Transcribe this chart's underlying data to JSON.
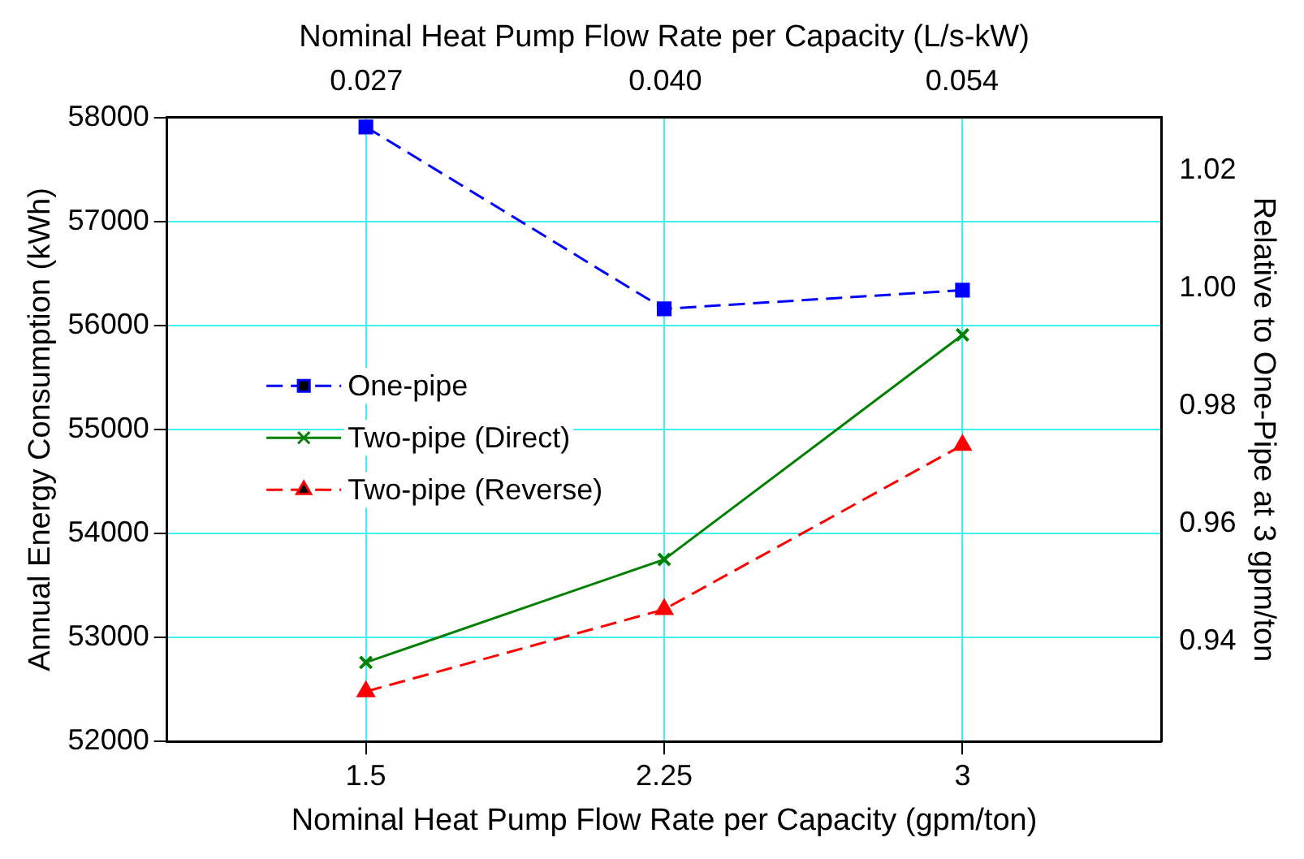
{
  "chart_data": {
    "type": "line",
    "xlabel": "Nominal Heat Pump Flow Rate per Capacity (gpm/ton)",
    "x2label": "Nominal Heat Pump Flow Rate per Capacity (L/s-kW)",
    "ylabel": "Annual Energy Consumption (kWh)",
    "y2label": "Relative to One-Pipe at 3 gpm/ton",
    "x": [
      1.5,
      2.25,
      3
    ],
    "series": [
      {
        "name": "One-pipe",
        "color": "#0000ff",
        "values": [
          57910,
          56160,
          56340
        ],
        "marker": "square",
        "line_style": "dashed"
      },
      {
        "name": "Two-pipe (Direct)",
        "color": "#008000",
        "values": [
          52760,
          53750,
          55910
        ],
        "marker": "cross",
        "line_style": "solid"
      },
      {
        "name": "Two-pipe (Reverse)",
        "color": "#ff0000",
        "values": [
          52480,
          53270,
          54850
        ],
        "marker": "triangle",
        "line_style": "dashed"
      }
    ],
    "xlim": [
      1,
      3.5
    ],
    "xticks": [
      1.5,
      2.25,
      3
    ],
    "x2lim": [
      0.0179,
      0.0628
    ],
    "x2ticks": [
      {
        "value": 0.0269,
        "label": "0.027"
      },
      {
        "value": 0.0404,
        "label": "0.040"
      },
      {
        "value": 0.0538,
        "label": "0.054"
      }
    ],
    "ylim": [
      52000,
      58000
    ],
    "yticks": [
      52000,
      53000,
      54000,
      55000,
      56000,
      57000,
      58000
    ],
    "y2lim": [
      0.923,
      1.029
    ],
    "y2ticks": [
      0.94,
      0.96,
      0.98,
      {
        "value": 1,
        "label": "1.00"
      },
      1.02
    ],
    "grid": true,
    "legend": "left"
  }
}
